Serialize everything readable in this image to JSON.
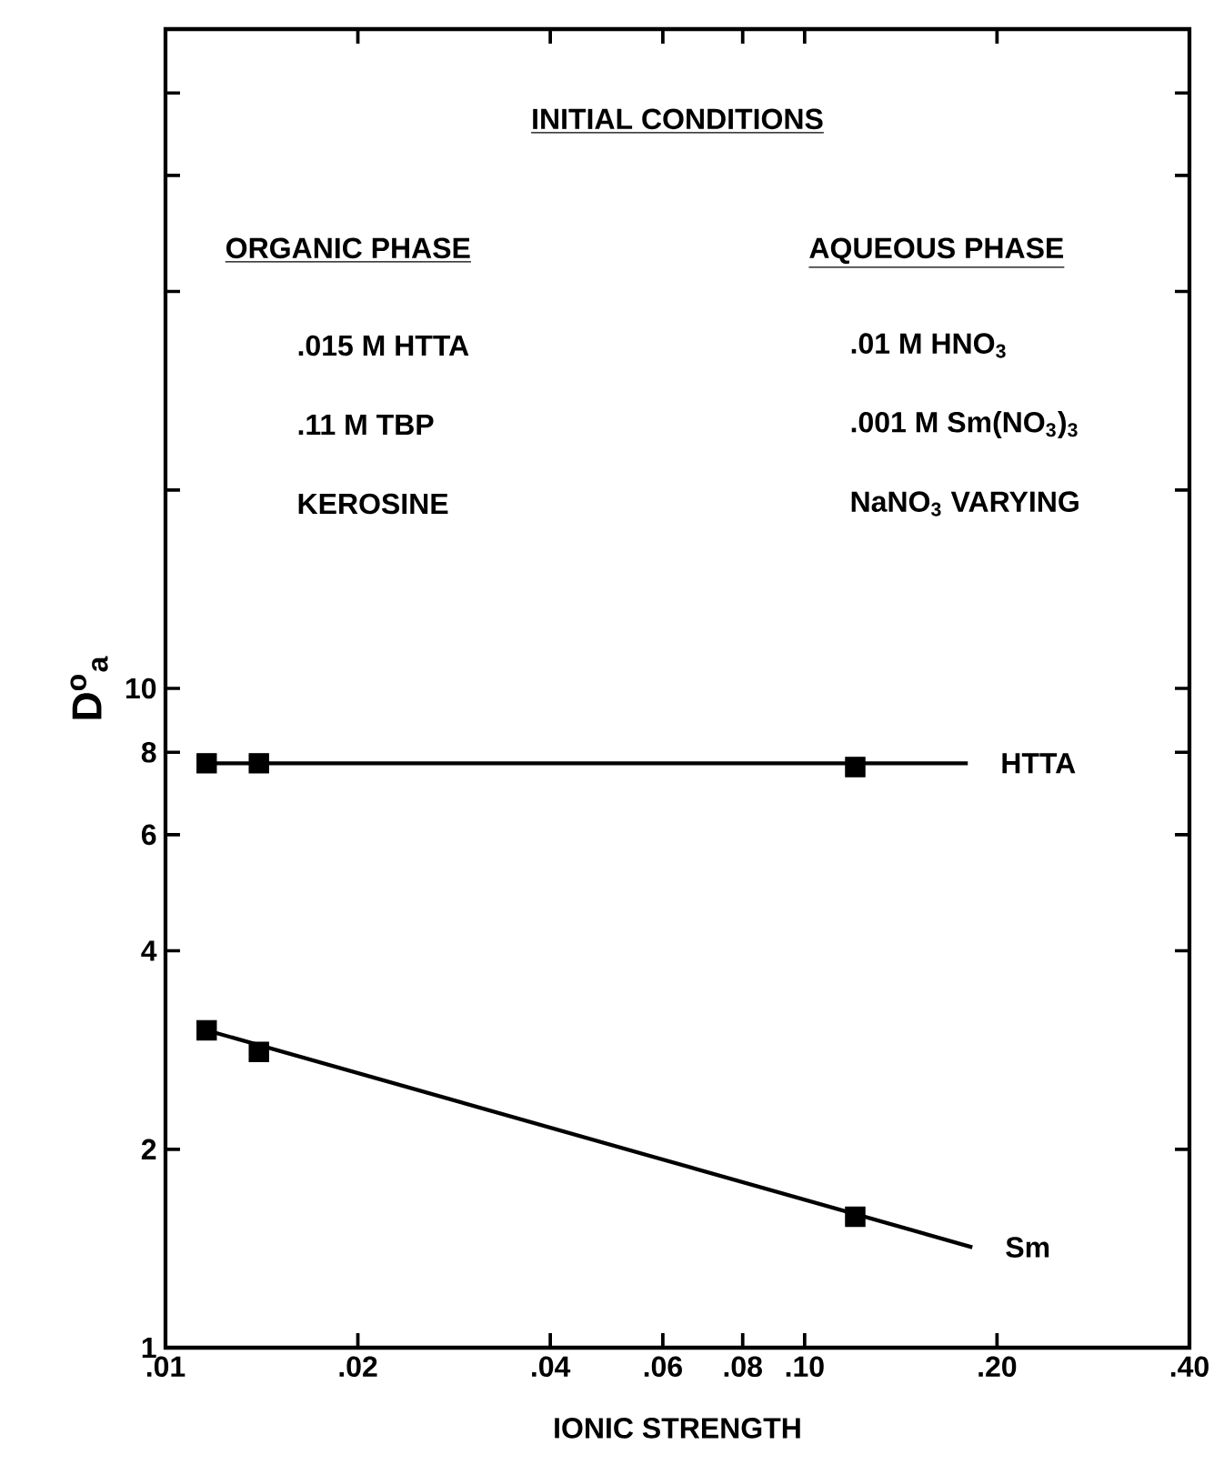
{
  "chart_data": {
    "type": "line",
    "xlabel": "IONIC STRENGTH",
    "ylabel": "D$^{o}$$_{a}$",
    "log": "xy",
    "xlim": [
      0.01,
      0.4
    ],
    "ylim": [
      1,
      100
    ],
    "xticks": [
      {
        "value": 0.01,
        "label": ".01"
      },
      {
        "value": 0.02,
        "label": ".02"
      },
      {
        "value": 0.04,
        "label": ".04"
      },
      {
        "value": 0.06,
        "label": ".06"
      },
      {
        "value": 0.08,
        "label": ".08"
      },
      {
        "value": 0.1,
        "label": ".10"
      },
      {
        "value": 0.2,
        "label": ".20"
      },
      {
        "value": 0.4,
        "label": ".40"
      }
    ],
    "yticks": [
      1,
      2,
      4,
      6,
      8,
      10,
      {
        "value": 20,
        "label": null
      },
      {
        "value": 40,
        "label": null
      },
      {
        "value": 60,
        "label": null
      },
      {
        "value": 80,
        "label": null
      }
    ],
    "annotations": [
      "INITIAL CONDITIONS",
      "ORGANIC PHASE",
      ".015 M HTTA",
      ".11 M TBP",
      "KEROSINE",
      "AQUEOUS PHASE",
      ".01 M HNO$_{3}$",
      ".001 M Sm(NO$_{3}$)$_{3}$",
      "NaNO$_{3}$ VARYING"
    ],
    "series": [
      {
        "name": "HTTA",
        "type": "line",
        "color": "#000000",
        "x": [
          0.0116,
          0.18
        ],
        "values": [
          7.7,
          7.7
        ]
      },
      {
        "type": "scatter",
        "marker": "square",
        "color": "#000000",
        "x": [
          0.0116,
          0.014,
          0.12
        ],
        "values": [
          7.7,
          7.7,
          7.6
        ]
      },
      {
        "name": "Sm",
        "type": "line",
        "color": "#000000",
        "x": [
          0.0116,
          0.183
        ],
        "values": [
          3.03,
          1.42
        ]
      },
      {
        "type": "scatter",
        "marker": "square",
        "color": "#000000",
        "x": [
          0.0116,
          0.014,
          0.12
        ],
        "values": [
          3.03,
          2.81,
          1.58
        ]
      }
    ]
  }
}
